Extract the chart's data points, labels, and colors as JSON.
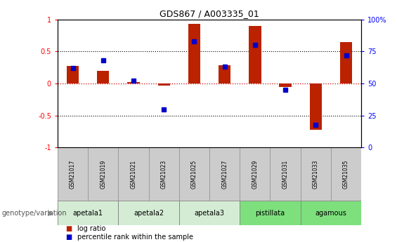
{
  "title": "GDS867 / A003335_01",
  "samples": [
    "GSM21017",
    "GSM21019",
    "GSM21021",
    "GSM21023",
    "GSM21025",
    "GSM21027",
    "GSM21029",
    "GSM21031",
    "GSM21033",
    "GSM21035"
  ],
  "log_ratio": [
    0.27,
    0.2,
    0.02,
    -0.03,
    0.93,
    0.28,
    0.9,
    -0.05,
    -0.72,
    0.65
  ],
  "percentile_rank": [
    62,
    68,
    52,
    30,
    83,
    63,
    80,
    45,
    18,
    72
  ],
  "groups": [
    {
      "label": "apetala1",
      "samples": [
        0,
        1
      ],
      "color": "#d4ecd4"
    },
    {
      "label": "apetala2",
      "samples": [
        2,
        3
      ],
      "color": "#d4ecd4"
    },
    {
      "label": "apetala3",
      "samples": [
        4,
        5
      ],
      "color": "#d4ecd4"
    },
    {
      "label": "pistillata",
      "samples": [
        6,
        7
      ],
      "color": "#7de07d"
    },
    {
      "label": "agamous",
      "samples": [
        8,
        9
      ],
      "color": "#7de07d"
    }
  ],
  "ylim_left": [
    -1,
    1
  ],
  "ylim_right": [
    0,
    100
  ],
  "bar_color": "#bb2200",
  "dot_color": "#0000cc",
  "zero_line_color": "#cc0000",
  "dot_linestyle": ":",
  "background_color": "white",
  "sample_box_color": "#cccccc",
  "legend_items": [
    {
      "label": "log ratio",
      "color": "#bb2200"
    },
    {
      "label": "percentile rank within the sample",
      "color": "#0000cc"
    }
  ],
  "left_yticks": [
    -1,
    -0.5,
    0,
    0.5,
    1
  ],
  "left_yticklabels": [
    "-1",
    "-0.5",
    "0",
    "0.5",
    "1"
  ],
  "right_yticks": [
    0,
    25,
    50,
    75,
    100
  ],
  "right_yticklabels": [
    "0",
    "25",
    "50",
    "75",
    "100%"
  ]
}
